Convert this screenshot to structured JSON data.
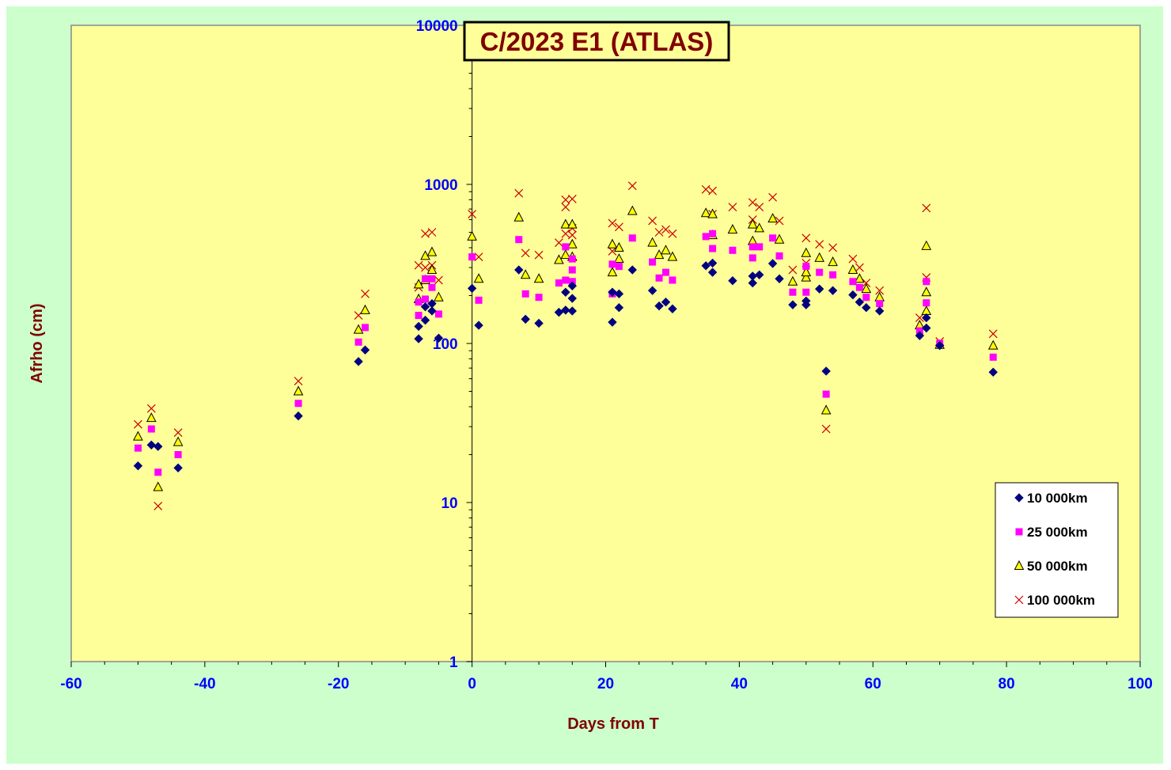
{
  "chart_data": {
    "type": "scatter",
    "title": "C/2023 E1 (ATLAS)",
    "xlabel": "Days from T",
    "ylabel": "Afrho (cm)",
    "xlim": [
      -60,
      100
    ],
    "ylim": [
      1,
      10000
    ],
    "yscale": "log",
    "x_ticks": [
      "-60",
      "-40",
      "-20",
      "0",
      "20",
      "40",
      "60",
      "80",
      "100"
    ],
    "y_ticks": [
      "1",
      "10",
      "100",
      "1000",
      "10000"
    ],
    "grid": false,
    "legend_position": "bottom-right",
    "colors": {
      "background": "#ccffcc",
      "plot_area": "#ffff99",
      "axis_text": "#0000ff",
      "title_text": "#800000"
    },
    "series": [
      {
        "name": "10 000km",
        "marker": "diamond",
        "color": "#000080",
        "points": [
          [
            -50,
            17
          ],
          [
            -48,
            23
          ],
          [
            -47,
            22.5
          ],
          [
            -44,
            16.5
          ],
          [
            -26,
            35
          ],
          [
            -17,
            77
          ],
          [
            -16,
            91
          ],
          [
            -8,
            107
          ],
          [
            -8,
            128
          ],
          [
            -7,
            140
          ],
          [
            -7,
            170
          ],
          [
            -6,
            160
          ],
          [
            -6,
            178
          ],
          [
            -5,
            108
          ],
          [
            0,
            222
          ],
          [
            1,
            130
          ],
          [
            7,
            290
          ],
          [
            8,
            142
          ],
          [
            10,
            134
          ],
          [
            13,
            157
          ],
          [
            14,
            162
          ],
          [
            14,
            210
          ],
          [
            15,
            160
          ],
          [
            15,
            192
          ],
          [
            15,
            230
          ],
          [
            21,
            136
          ],
          [
            21,
            210
          ],
          [
            22,
            205
          ],
          [
            22,
            168
          ],
          [
            24,
            290
          ],
          [
            27,
            215
          ],
          [
            28,
            172
          ],
          [
            29,
            182
          ],
          [
            30,
            165
          ],
          [
            35,
            308
          ],
          [
            36,
            320
          ],
          [
            36,
            280
          ],
          [
            39,
            248
          ],
          [
            42,
            240
          ],
          [
            42,
            265
          ],
          [
            43,
            270
          ],
          [
            45,
            318
          ],
          [
            46,
            255
          ],
          [
            48,
            175
          ],
          [
            50,
            185
          ],
          [
            50,
            175
          ],
          [
            52,
            220
          ],
          [
            53,
            67
          ],
          [
            54,
            215
          ],
          [
            57,
            202
          ],
          [
            58,
            182
          ],
          [
            59,
            168
          ],
          [
            61,
            160
          ],
          [
            67,
            112
          ],
          [
            68,
            125
          ],
          [
            68,
            145
          ],
          [
            70,
            97
          ],
          [
            78,
            66
          ]
        ]
      },
      {
        "name": "25 000km",
        "marker": "square",
        "color": "#ff00ff",
        "points": [
          [
            -50,
            22
          ],
          [
            -48,
            29
          ],
          [
            -47,
            15.5
          ],
          [
            -44,
            20
          ],
          [
            -26,
            42
          ],
          [
            -17,
            102
          ],
          [
            -16,
            126
          ],
          [
            -8,
            150
          ],
          [
            -8,
            182
          ],
          [
            -7,
            190
          ],
          [
            -7,
            255
          ],
          [
            -6,
            225
          ],
          [
            -6,
            255
          ],
          [
            -5,
            153
          ],
          [
            0,
            350
          ],
          [
            1,
            187
          ],
          [
            7,
            450
          ],
          [
            8,
            205
          ],
          [
            10,
            195
          ],
          [
            13,
            240
          ],
          [
            14,
            250
          ],
          [
            14,
            405
          ],
          [
            15,
            245
          ],
          [
            15,
            290
          ],
          [
            15,
            340
          ],
          [
            21,
            205
          ],
          [
            21,
            315
          ],
          [
            22,
            305
          ],
          [
            24,
            460
          ],
          [
            27,
            325
          ],
          [
            28,
            258
          ],
          [
            29,
            280
          ],
          [
            30,
            250
          ],
          [
            35,
            470
          ],
          [
            36,
            490
          ],
          [
            36,
            395
          ],
          [
            39,
            385
          ],
          [
            42,
            345
          ],
          [
            42,
            405
          ],
          [
            43,
            405
          ],
          [
            45,
            460
          ],
          [
            46,
            355
          ],
          [
            48,
            210
          ],
          [
            50,
            305
          ],
          [
            50,
            210
          ],
          [
            52,
            280
          ],
          [
            53,
            48
          ],
          [
            54,
            270
          ],
          [
            57,
            245
          ],
          [
            58,
            225
          ],
          [
            59,
            195
          ],
          [
            61,
            178
          ],
          [
            67,
            120
          ],
          [
            68,
            245
          ],
          [
            68,
            180
          ],
          [
            70,
            100
          ],
          [
            78,
            82
          ]
        ]
      },
      {
        "name": "50 000km",
        "marker": "triangle",
        "color": "#ffff00",
        "points": [
          [
            -50,
            26
          ],
          [
            -48,
            34
          ],
          [
            -47,
            12.5
          ],
          [
            -44,
            24
          ],
          [
            -26,
            50
          ],
          [
            -17,
            122
          ],
          [
            -16,
            162
          ],
          [
            -8,
            190
          ],
          [
            -8,
            235
          ],
          [
            -7,
            250
          ],
          [
            -7,
            355
          ],
          [
            -6,
            290
          ],
          [
            -6,
            375
          ],
          [
            -5,
            195
          ],
          [
            0,
            470
          ],
          [
            1,
            255
          ],
          [
            7,
            620
          ],
          [
            8,
            270
          ],
          [
            10,
            255
          ],
          [
            13,
            335
          ],
          [
            14,
            360
          ],
          [
            14,
            560
          ],
          [
            15,
            350
          ],
          [
            15,
            420
          ],
          [
            15,
            560
          ],
          [
            21,
            280
          ],
          [
            21,
            420
          ],
          [
            22,
            400
          ],
          [
            22,
            340
          ],
          [
            24,
            680
          ],
          [
            27,
            430
          ],
          [
            28,
            360
          ],
          [
            29,
            385
          ],
          [
            30,
            350
          ],
          [
            35,
            660
          ],
          [
            36,
            480
          ],
          [
            36,
            650
          ],
          [
            39,
            520
          ],
          [
            42,
            440
          ],
          [
            42,
            560
          ],
          [
            43,
            530
          ],
          [
            45,
            610
          ],
          [
            46,
            450
          ],
          [
            48,
            245
          ],
          [
            50,
            370
          ],
          [
            50,
            260
          ],
          [
            50,
            280
          ],
          [
            52,
            345
          ],
          [
            53,
            38
          ],
          [
            54,
            325
          ],
          [
            57,
            290
          ],
          [
            58,
            255
          ],
          [
            59,
            220
          ],
          [
            61,
            195
          ],
          [
            67,
            130
          ],
          [
            68,
            410
          ],
          [
            68,
            210
          ],
          [
            68,
            160
          ],
          [
            70,
            98
          ],
          [
            78,
            97
          ]
        ]
      },
      {
        "name": "100 000km",
        "marker": "cross",
        "color": "#cc0000",
        "points": [
          [
            -50,
            31
          ],
          [
            -48,
            39
          ],
          [
            -47,
            9.5
          ],
          [
            -44,
            27.5
          ],
          [
            -26,
            58
          ],
          [
            -17,
            150
          ],
          [
            -16,
            205
          ],
          [
            -8,
            225
          ],
          [
            -8,
            310
          ],
          [
            -7,
            300
          ],
          [
            -7,
            490
          ],
          [
            -6,
            310
          ],
          [
            -6,
            500
          ],
          [
            -5,
            250
          ],
          [
            0,
            650
          ],
          [
            1,
            350
          ],
          [
            7,
            880
          ],
          [
            8,
            370
          ],
          [
            10,
            360
          ],
          [
            13,
            430
          ],
          [
            14,
            490
          ],
          [
            14,
            720
          ],
          [
            14,
            800
          ],
          [
            15,
            480
          ],
          [
            15,
            530
          ],
          [
            15,
            810
          ],
          [
            21,
            380
          ],
          [
            21,
            570
          ],
          [
            22,
            540
          ],
          [
            24,
            980
          ],
          [
            27,
            590
          ],
          [
            28,
            500
          ],
          [
            29,
            520
          ],
          [
            30,
            490
          ],
          [
            35,
            930
          ],
          [
            36,
            910
          ],
          [
            36,
            650
          ],
          [
            39,
            720
          ],
          [
            42,
            600
          ],
          [
            42,
            770
          ],
          [
            43,
            720
          ],
          [
            45,
            830
          ],
          [
            46,
            590
          ],
          [
            48,
            290
          ],
          [
            50,
            460
          ],
          [
            50,
            320
          ],
          [
            52,
            420
          ],
          [
            53,
            29
          ],
          [
            54,
            400
          ],
          [
            57,
            340
          ],
          [
            58,
            300
          ],
          [
            59,
            240
          ],
          [
            61,
            215
          ],
          [
            67,
            145
          ],
          [
            68,
            710
          ],
          [
            68,
            260
          ],
          [
            70,
            103
          ],
          [
            78,
            115
          ]
        ]
      }
    ]
  }
}
